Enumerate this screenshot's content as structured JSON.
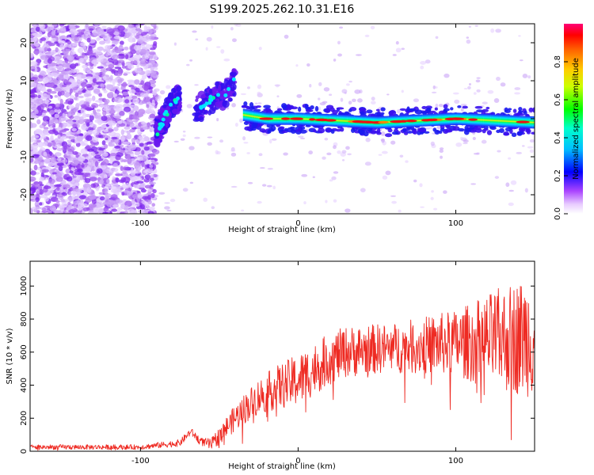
{
  "title": "S199.2025.262.10.31.E16",
  "colors": {
    "trace": "#ee2a22",
    "noise": "#7a22ee",
    "colorbar_stops": [
      "#ff00ff",
      "#0000ff",
      "#00ffff",
      "#00ff00",
      "#ffff00",
      "#ff8800",
      "#ff0000",
      "#ff0066"
    ]
  },
  "chart_data": [
    {
      "type": "heatmap",
      "name": "spectrogram",
      "xlabel": "Height of straight line (km)",
      "ylabel": "Frequency (Hz)",
      "xlim": [
        -170,
        150
      ],
      "ylim": [
        -25,
        25
      ],
      "xticks": [
        -100,
        0,
        100
      ],
      "xtick_labels": [
        "-100",
        "0",
        "100"
      ],
      "yticks": [
        20,
        10,
        0,
        -10,
        -20
      ],
      "ytick_labels": [
        "20",
        "10",
        "0",
        "-10",
        "-20"
      ],
      "colorbar": {
        "label": "Normalized spectral amplitude",
        "range": [
          0,
          1
        ],
        "ticks": [
          0.0,
          0.2,
          0.4,
          0.6,
          0.8
        ],
        "tick_labels": [
          "0.0",
          "0.2",
          "0.4",
          "0.6",
          "0.8"
        ]
      },
      "features": {
        "noise_region_x": [
          -170,
          -90
        ],
        "rising_branch_1": [
          [
            -90,
            -4
          ],
          [
            -85,
            0
          ],
          [
            -80,
            4
          ],
          [
            -75,
            6
          ]
        ],
        "rising_branch_2": [
          [
            -65,
            2
          ],
          [
            -55,
            5
          ],
          [
            -45,
            7
          ],
          [
            -40,
            10
          ]
        ],
        "band_center_hz": [
          [
            -35,
            1
          ],
          [
            -20,
            0
          ],
          [
            0,
            0
          ],
          [
            50,
            -1
          ],
          [
            100,
            0
          ],
          [
            150,
            -1
          ]
        ]
      }
    },
    {
      "type": "line",
      "name": "snr",
      "xlabel": "Height of straight line (km)",
      "ylabel": "SNR (10 * v/v)",
      "xlim": [
        -170,
        150
      ],
      "ylim": [
        0,
        1150
      ],
      "xticks": [
        -100,
        0,
        100
      ],
      "xtick_labels": [
        "-100",
        "0",
        "100"
      ],
      "yticks": [
        0,
        200,
        400,
        600,
        800,
        1000
      ],
      "ytick_labels": [
        "0",
        "200",
        "400",
        "600",
        "800",
        "1000"
      ],
      "trend_x": [
        -170,
        -100,
        -75,
        -68,
        -62,
        -55,
        -45,
        -35,
        -25,
        -15,
        0,
        20,
        30,
        50,
        70,
        90,
        110,
        130,
        150
      ],
      "trend_y": [
        25,
        25,
        50,
        120,
        60,
        40,
        150,
        250,
        330,
        380,
        430,
        560,
        600,
        620,
        630,
        650,
        660,
        680,
        700
      ],
      "noise_amp_x": [
        -170,
        -100,
        -60,
        -40,
        0,
        60,
        100,
        130,
        150
      ],
      "noise_amp_y": [
        15,
        15,
        25,
        80,
        160,
        150,
        200,
        320,
        380
      ]
    }
  ]
}
